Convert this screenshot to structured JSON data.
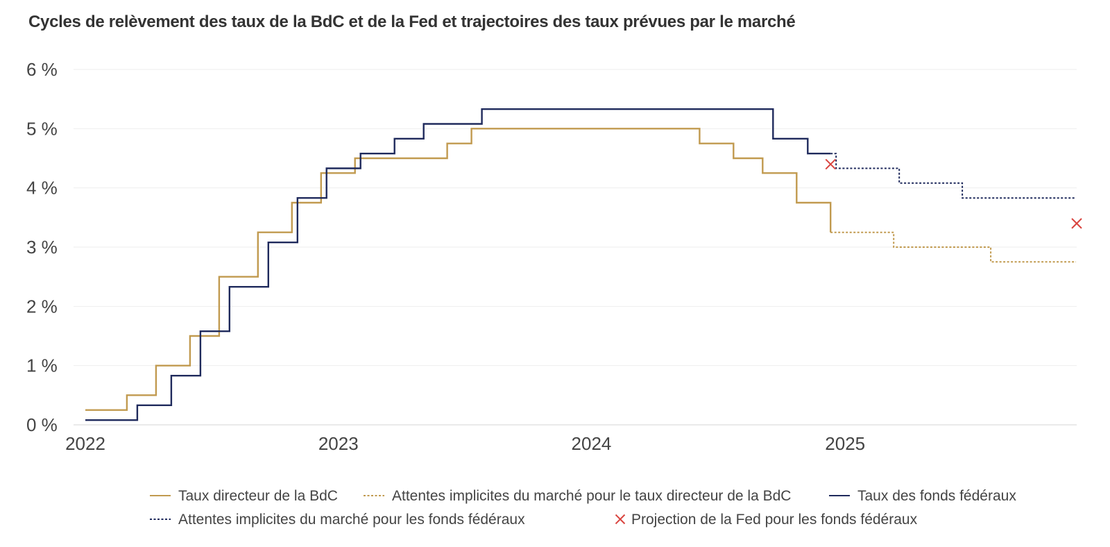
{
  "chart_data": {
    "type": "line",
    "title": "Cycles de relèvement des taux de la BdC et de la Fed et trajectoires des taux prévues par le marché",
    "xlabel": "",
    "ylabel": "",
    "ylim": [
      0,
      6
    ],
    "xlim": [
      "2021-12-15",
      "2025-12-01"
    ],
    "y_ticks": [
      {
        "value": 0,
        "label": "0 %"
      },
      {
        "value": 1,
        "label": "1 %"
      },
      {
        "value": 2,
        "label": "2 %"
      },
      {
        "value": 3,
        "label": "3 %"
      },
      {
        "value": 4,
        "label": "4 %"
      },
      {
        "value": 5,
        "label": "5 %"
      },
      {
        "value": 6,
        "label": "6 %"
      }
    ],
    "x_ticks": [
      {
        "value": "2022-01-01",
        "label": "2022"
      },
      {
        "value": "2023-01-01",
        "label": "2023"
      },
      {
        "value": "2024-01-01",
        "label": "2024"
      },
      {
        "value": "2025-01-01",
        "label": "2025"
      }
    ],
    "grid": "horizontal",
    "legend_position": "bottom",
    "series": [
      {
        "name": "Taux directeur de la BdC",
        "style": "solid",
        "color": "#c19a4f",
        "step": true,
        "x": [
          "2022-01-01",
          "2022-03-02",
          "2022-04-13",
          "2022-06-01",
          "2022-07-13",
          "2022-09-07",
          "2022-10-26",
          "2022-12-07",
          "2023-01-25",
          "2023-06-07",
          "2023-07-12",
          "2024-06-05",
          "2024-07-24",
          "2024-09-04",
          "2024-10-23",
          "2024-12-11"
        ],
        "values": [
          0.25,
          0.5,
          1.0,
          1.5,
          2.5,
          3.25,
          3.75,
          4.25,
          4.5,
          4.75,
          5.0,
          4.75,
          4.5,
          4.25,
          3.75,
          3.25
        ]
      },
      {
        "name": "Attentes implicites du marché pour le taux directeur de la BdC",
        "style": "dashed",
        "color": "#c19a4f",
        "step": true,
        "x": [
          "2024-12-11",
          "2025-03-12",
          "2025-06-04",
          "2025-07-30",
          "2025-11-30"
        ],
        "values": [
          3.25,
          3.0,
          3.0,
          2.75,
          2.75
        ]
      },
      {
        "name": "Taux des fonds fédéraux",
        "style": "solid",
        "color": "#1f2a5c",
        "step": true,
        "x": [
          "2022-01-01",
          "2022-03-17",
          "2022-05-05",
          "2022-06-16",
          "2022-07-28",
          "2022-09-22",
          "2022-11-03",
          "2022-12-15",
          "2023-02-02",
          "2023-03-23",
          "2023-05-04",
          "2023-07-27",
          "2024-09-19",
          "2024-11-08",
          "2024-12-11"
        ],
        "values": [
          0.08,
          0.33,
          0.83,
          1.58,
          2.33,
          3.08,
          3.83,
          4.33,
          4.58,
          4.83,
          5.08,
          5.33,
          4.83,
          4.58,
          4.58
        ]
      },
      {
        "name": "Attentes implicites du marché pour les fonds fédéraux",
        "style": "dashed",
        "color": "#1f2a5c",
        "step": true,
        "x": [
          "2024-12-11",
          "2024-12-19",
          "2025-03-20",
          "2025-06-19",
          "2025-11-30"
        ],
        "values": [
          4.58,
          4.33,
          4.08,
          3.83,
          3.83
        ]
      },
      {
        "name": "Projection de la Fed pour les fonds fédéraux",
        "style": "marker",
        "marker": "x",
        "color": "#d9443f",
        "x": [
          "2024-12-11",
          "2025-12-01"
        ],
        "values": [
          4.4,
          3.4
        ]
      }
    ]
  }
}
